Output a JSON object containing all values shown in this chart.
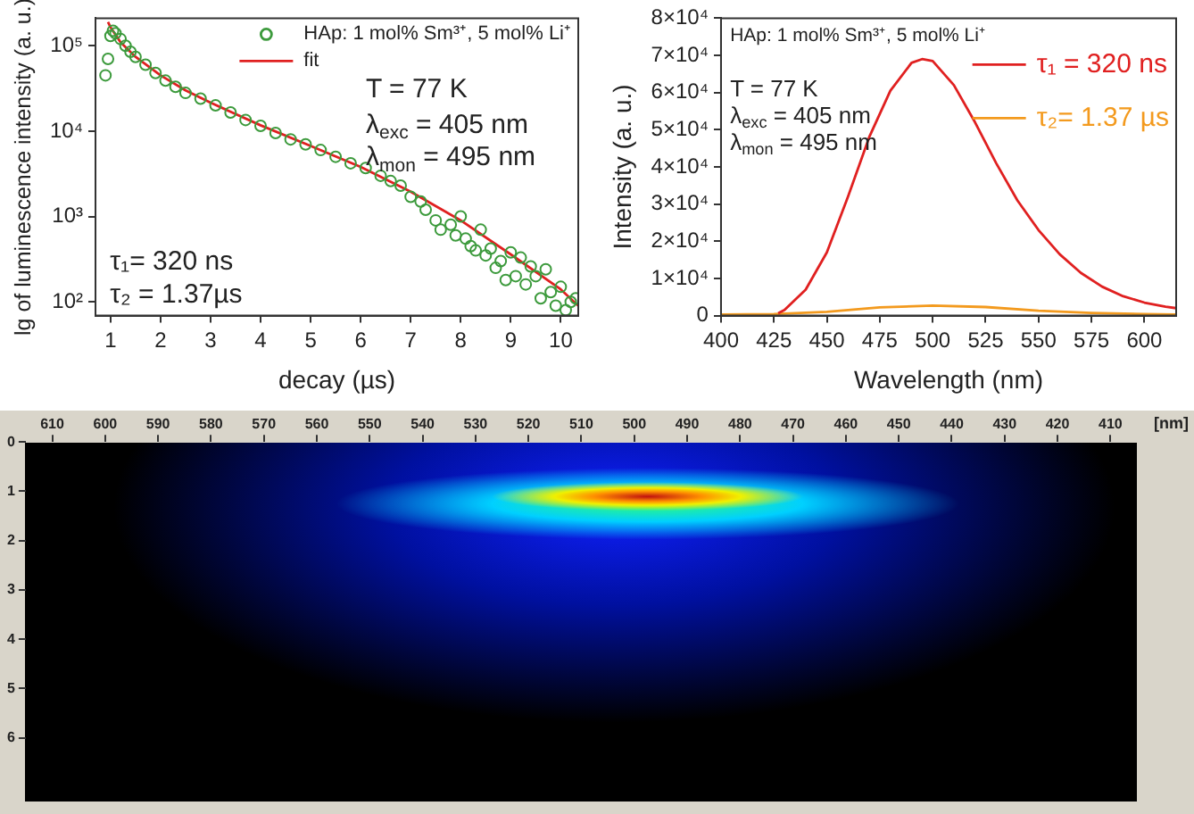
{
  "chart_data": [
    {
      "type": "scatter",
      "xlabel": "decay (µs)",
      "ylabel": "lg of luminescence intensity (a. u.)",
      "log": "y",
      "xlim": [
        0.7,
        10.35
      ],
      "xticks": [
        1,
        2,
        3,
        4,
        5,
        6,
        7,
        8,
        9,
        10
      ],
      "ylim": [
        69,
        210000
      ],
      "yticks": [
        {
          "value": 100,
          "label": "10²"
        },
        {
          "value": 1000,
          "label": "10³"
        },
        {
          "value": 10000,
          "label": "10⁴"
        },
        {
          "value": 100000,
          "label": "10⁵"
        }
      ],
      "legend": "top right",
      "annotations": [
        "T = 77 K",
        "λ$_{exc}$ = 405 nm",
        "λ$_{mon}$ = 495 nm",
        "τ₁= 320 ns",
        "τ₂ = 1.37µs"
      ],
      "series": [
        {
          "name": "HAp: 1 mol% Sm³⁺, 5 mol% Li⁺",
          "type": "scatter",
          "marker": "circle",
          "color": "#3c9a3c",
          "x": [
            0.9,
            0.95,
            1.0,
            1.05,
            1.1,
            1.2,
            1.3,
            1.4,
            1.5,
            1.7,
            1.9,
            2.1,
            2.3,
            2.5,
            2.8,
            3.1,
            3.4,
            3.7,
            4.0,
            4.3,
            4.6,
            4.9,
            5.2,
            5.5,
            5.8,
            6.1,
            6.4,
            6.6,
            6.8,
            7.0,
            7.2,
            7.3,
            7.5,
            7.6,
            7.8,
            7.9,
            8.0,
            8.1,
            8.2,
            8.3,
            8.4,
            8.5,
            8.6,
            8.7,
            8.8,
            8.9,
            9.0,
            9.1,
            9.2,
            9.3,
            9.4,
            9.5,
            9.6,
            9.7,
            9.8,
            9.9,
            10.0,
            10.1,
            10.2,
            10.3
          ],
          "values": [
            45000,
            70000,
            130000,
            150000,
            140000,
            120000,
            100000,
            85000,
            74000,
            60000,
            48000,
            39000,
            33000,
            28000,
            24000,
            20000,
            16500,
            13500,
            11500,
            9500,
            8000,
            7000,
            6000,
            5000,
            4200,
            3700,
            3000,
            2600,
            2300,
            1700,
            1500,
            1200,
            900,
            700,
            800,
            600,
            1000,
            550,
            450,
            400,
            700,
            350,
            420,
            250,
            300,
            180,
            380,
            200,
            330,
            160,
            260,
            200,
            110,
            240,
            130,
            90,
            150,
            80,
            100,
            110
          ]
        },
        {
          "name": "fit",
          "type": "line",
          "color": "#e02020",
          "x": [
            0.95,
            1.0,
            1.2,
            1.5,
            2,
            2.5,
            3,
            4,
            5,
            6,
            7,
            8,
            9,
            10,
            10.35
          ],
          "values": [
            190000,
            165000,
            110000,
            74000,
            45000,
            30000,
            21500,
            11700,
            6700,
            3800,
            1950,
            900,
            360,
            140,
            90
          ]
        }
      ]
    },
    {
      "type": "line",
      "xlabel": "Wavelength (nm)",
      "ylabel": "Intensity (a. u.)",
      "xlim": [
        400,
        615
      ],
      "xticks": [
        400,
        425,
        450,
        475,
        500,
        525,
        550,
        575,
        600
      ],
      "ylim": [
        0,
        80000
      ],
      "yticks": [
        0,
        {
          "value": 10000,
          "label": "1×10⁴"
        },
        {
          "value": 20000,
          "label": "2×10⁴"
        },
        {
          "value": 30000,
          "label": "3×10⁴"
        },
        {
          "value": 40000,
          "label": "4×10⁴"
        },
        {
          "value": 50000,
          "label": "5×10⁴"
        },
        {
          "value": 60000,
          "label": "6×10⁴"
        },
        {
          "value": 70000,
          "label": "7×10⁴"
        },
        {
          "value": 80000,
          "label": "8×10⁴"
        }
      ],
      "legend": "top right",
      "annotations": [
        "HAp: 1 mol% Sm³⁺, 5 mol% Li⁺",
        "T = 77 K",
        "λ$_{exc}$ = 405 nm",
        "λ$_{mon}$ = 495 nm"
      ],
      "series": [
        {
          "name": "τ₁ = 320 ns",
          "color": "#e02020",
          "x": [
            427,
            430,
            440,
            450,
            460,
            470,
            480,
            490,
            495,
            500,
            510,
            520,
            530,
            540,
            550,
            560,
            570,
            580,
            590,
            600,
            610,
            615
          ],
          "values": [
            600,
            1500,
            7000,
            17000,
            32000,
            48000,
            60500,
            68000,
            69000,
            68500,
            62000,
            52000,
            41000,
            31000,
            23000,
            16500,
            11500,
            7800,
            5200,
            3500,
            2400,
            2000
          ]
        },
        {
          "name": "τ₂= 1.37 µs",
          "color": "#f39a1e",
          "x": [
            400,
            425,
            450,
            475,
            500,
            525,
            550,
            575,
            600,
            615
          ],
          "values": [
            300,
            400,
            1000,
            2200,
            2700,
            2300,
            1300,
            700,
            400,
            300
          ]
        }
      ]
    },
    {
      "type": "scatter",
      "xlabel": "[nm]",
      "xlim": [
        615,
        405
      ],
      "xticks": [
        610,
        600,
        590,
        580,
        570,
        560,
        550,
        540,
        530,
        520,
        510,
        500,
        490,
        480,
        470,
        460,
        450,
        440,
        430,
        420,
        410
      ],
      "ylim": [
        7.3,
        0
      ],
      "yticks": [
        0,
        1,
        2,
        3,
        4,
        5,
        6
      ]
    }
  ]
}
